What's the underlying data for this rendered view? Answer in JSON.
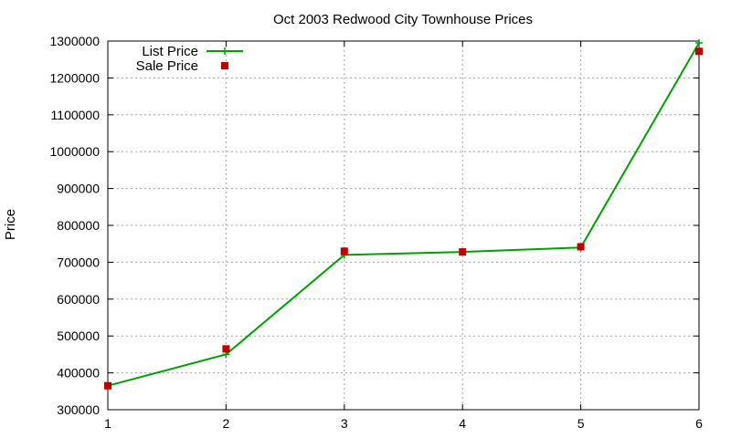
{
  "chart_data": {
    "type": "line",
    "title": "Oct 2003 Redwood City Townhouse Prices",
    "xlabel": "",
    "ylabel": "Price",
    "x": [
      1,
      2,
      3,
      4,
      5,
      6
    ],
    "xlim": [
      1,
      6
    ],
    "ylim": [
      300000,
      1300000
    ],
    "xticks": [
      "1",
      "2",
      "3",
      "4",
      "5",
      "6"
    ],
    "yticks": [
      "300000",
      "400000",
      "500000",
      "600000",
      "700000",
      "800000",
      "900000",
      "1000000",
      "1100000",
      "1200000",
      "1300000"
    ],
    "ytick_values": [
      300000,
      400000,
      500000,
      600000,
      700000,
      800000,
      900000,
      1000000,
      1100000,
      1200000,
      1300000
    ],
    "grid": true,
    "legend_position": "top-left",
    "series": [
      {
        "name": "List Price",
        "values": [
          365000,
          450000,
          720000,
          728000,
          740000,
          1295000
        ],
        "style": "line-plus",
        "color": "#00a000"
      },
      {
        "name": "Sale Price",
        "values": [
          365000,
          465000,
          730000,
          728000,
          742000,
          1272000
        ],
        "style": "square",
        "color": "#c00000"
      }
    ]
  }
}
